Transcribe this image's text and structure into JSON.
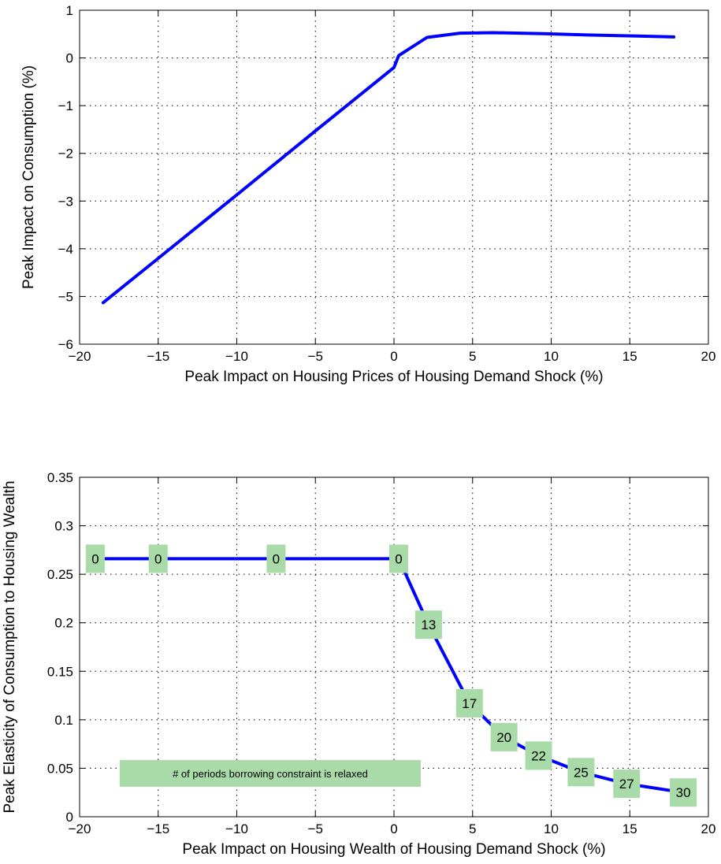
{
  "chart_data": [
    {
      "type": "line",
      "xlabel": "Peak Impact on Housing Prices of Housing Demand Shock (%)",
      "ylabel": "Peak Impact on Consumption (%)",
      "xlim": [
        -20,
        20
      ],
      "ylim": [
        -6,
        1
      ],
      "xticks": [
        -20,
        -15,
        -10,
        -5,
        0,
        5,
        10,
        15,
        20
      ],
      "yticks": [
        -6,
        -5,
        -4,
        -3,
        -2,
        -1,
        0,
        1
      ],
      "grid": true,
      "line_color": "#0000ff",
      "series": [
        {
          "x": [
            -18.5,
            -15,
            -10,
            -5,
            0,
            0.3,
            2.1,
            4.2,
            6.3,
            9.5,
            12.5,
            15.5,
            17.8
          ],
          "y": [
            -5.13,
            -4.2,
            -2.87,
            -1.53,
            -0.2,
            0.05,
            0.43,
            0.52,
            0.53,
            0.51,
            0.48,
            0.46,
            0.44
          ]
        }
      ]
    },
    {
      "type": "line",
      "xlabel": "Peak Impact on Housing Wealth of Housing Demand Shock (%)",
      "ylabel": "Peak Elasticity of Consumption to Housing Wealth",
      "xlim": [
        -20,
        20
      ],
      "ylim": [
        0,
        0.35
      ],
      "xticks": [
        -20,
        -15,
        -10,
        -5,
        0,
        5,
        10,
        15,
        20
      ],
      "yticks": [
        0,
        0.05,
        0.1,
        0.15,
        0.2,
        0.25,
        0.3,
        0.35
      ],
      "grid": true,
      "line_color": "#0000ff",
      "label_color": "#a8dba8",
      "legend_text": "# of periods borrowing constraint is relaxed",
      "series": [
        {
          "x": [
            -19,
            -15,
            -7.5,
            0.3,
            2.2,
            4.8,
            7,
            9.2,
            11.9,
            14.8,
            18.4
          ],
          "y": [
            0.266,
            0.266,
            0.266,
            0.266,
            0.198,
            0.117,
            0.082,
            0.063,
            0.046,
            0.034,
            0.025
          ],
          "labels": [
            "0",
            "0",
            "0",
            "0",
            "13",
            "17",
            "20",
            "22",
            "25",
            "27",
            "30"
          ]
        }
      ]
    }
  ]
}
